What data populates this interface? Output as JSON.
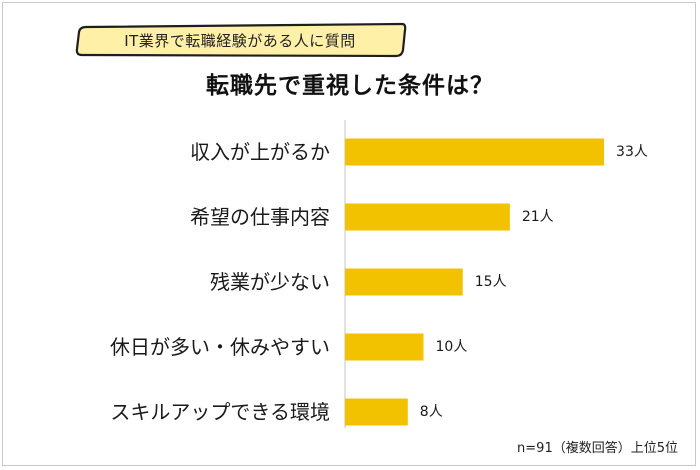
{
  "badge_text": "IT業界で転職経験がある人に質問",
  "title": "転職先で重視した条件は？",
  "note": "n=91（複数回答）上位5位",
  "colors": {
    "bar": "#f2c200",
    "badge_fill": "#fff0a8",
    "badge_stroke": "#1e1e1e",
    "axis": "#cfcfcf"
  },
  "chart_data": {
    "type": "bar",
    "orientation": "horizontal",
    "categories": [
      "収入が上がるか",
      "希望の仕事内容",
      "残業が少ない",
      "休日が多い・休みやすい",
      "スキルアップできる環境"
    ],
    "values": [
      33,
      21,
      15,
      10,
      8
    ],
    "value_labels": [
      "33人",
      "21人",
      "15人",
      "10人",
      "8人"
    ],
    "unit": "人"
  }
}
